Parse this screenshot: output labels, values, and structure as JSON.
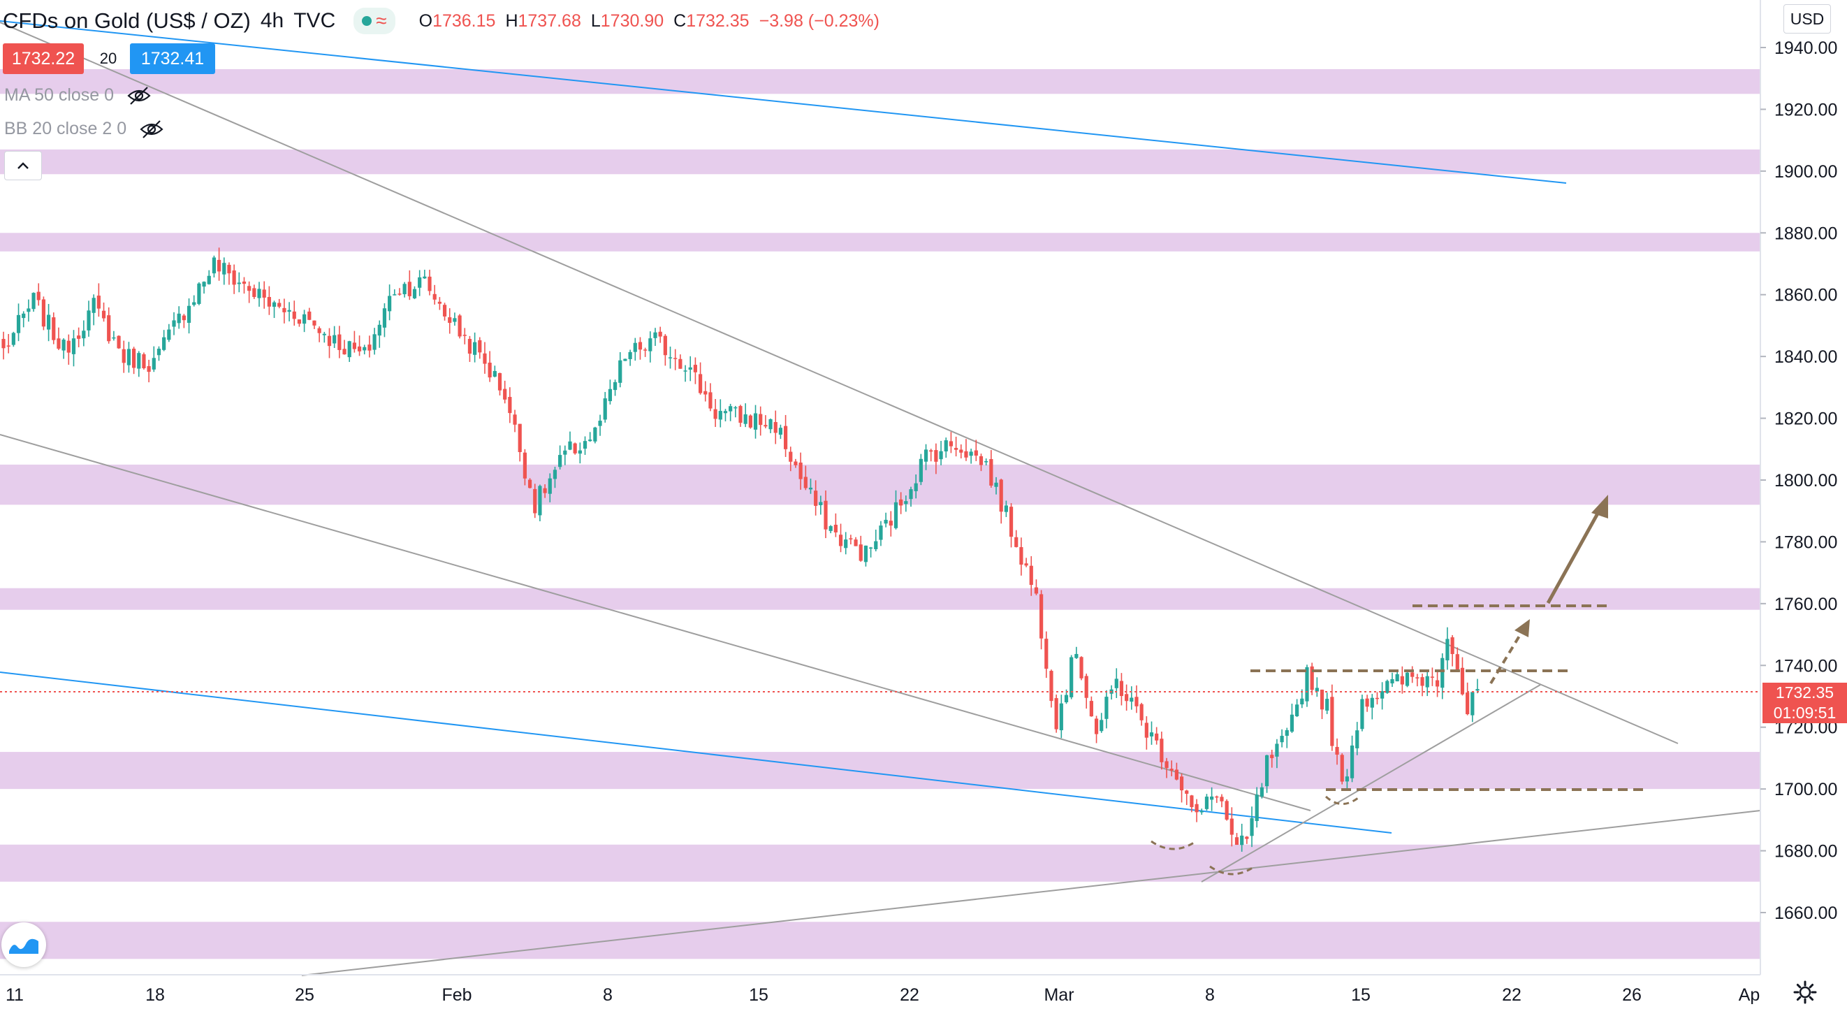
{
  "header": {
    "symbol": "CFDs on Gold (US$ / OZ)",
    "interval": "4h",
    "exchange": "TVC",
    "open_label": "O",
    "open": "1736.15",
    "high_label": "H",
    "high": "1737.68",
    "low_label": "L",
    "low": "1730.90",
    "close_label": "C",
    "close": "1732.35",
    "change": "−3.98 (−0.23%)"
  },
  "trade": {
    "bid": "1732.22",
    "spread": "20",
    "ask": "1732.41"
  },
  "indicators": [
    {
      "label": "MA 50 close 0",
      "icon": "eye-hidden-icon"
    },
    {
      "label": "BB 20 close 2 0",
      "icon": "eye-hidden-icon"
    }
  ],
  "currency_button": "USD",
  "last_price": {
    "price": "1732.35",
    "countdown": "01:09:51"
  },
  "colors": {
    "up": "#26a69a",
    "down": "#ef5350",
    "zone": "#e6cdec",
    "channel": "#2196f3",
    "trend": "#9e9e9e",
    "annotation": "#8b7355"
  },
  "chart_data": {
    "type": "candlestick",
    "ylim": [
      1640,
      1955
    ],
    "y_ticks": [
      "1940.00",
      "1920.00",
      "1900.00",
      "1880.00",
      "1860.00",
      "1840.00",
      "1820.00",
      "1800.00",
      "1780.00",
      "1760.00",
      "1740.00",
      "1720.00",
      "1700.00",
      "1680.00",
      "1660.00"
    ],
    "x_ticks": [
      "11",
      "18",
      "25",
      "Feb",
      "8",
      "15",
      "22",
      "Mar",
      "8",
      "15",
      "22",
      "26",
      "Ap"
    ],
    "grid": false,
    "support_resistance_zones": [
      [
        1925,
        1933
      ],
      [
        1899,
        1907
      ],
      [
        1874,
        1880
      ],
      [
        1792,
        1805
      ],
      [
        1758,
        1765
      ],
      [
        1700,
        1712
      ],
      [
        1670,
        1682
      ],
      [
        1645,
        1657
      ]
    ],
    "anchors": [
      {
        "t": 0,
        "p": 1842
      },
      {
        "t": 6,
        "p": 1858
      },
      {
        "t": 12,
        "p": 1842
      },
      {
        "t": 18,
        "p": 1856
      },
      {
        "t": 24,
        "p": 1840
      },
      {
        "t": 30,
        "p": 1838
      },
      {
        "t": 36,
        "p": 1855
      },
      {
        "t": 42,
        "p": 1870
      },
      {
        "t": 48,
        "p": 1863
      },
      {
        "t": 54,
        "p": 1856
      },
      {
        "t": 60,
        "p": 1853
      },
      {
        "t": 66,
        "p": 1845
      },
      {
        "t": 72,
        "p": 1840
      },
      {
        "t": 78,
        "p": 1862
      },
      {
        "t": 84,
        "p": 1864
      },
      {
        "t": 90,
        "p": 1850
      },
      {
        "t": 96,
        "p": 1838
      },
      {
        "t": 100,
        "p": 1828
      },
      {
        "t": 106,
        "p": 1792
      },
      {
        "t": 112,
        "p": 1808
      },
      {
        "t": 118,
        "p": 1815
      },
      {
        "t": 124,
        "p": 1840
      },
      {
        "t": 130,
        "p": 1845
      },
      {
        "t": 136,
        "p": 1838
      },
      {
        "t": 142,
        "p": 1822
      },
      {
        "t": 148,
        "p": 1820
      },
      {
        "t": 154,
        "p": 1818
      },
      {
        "t": 160,
        "p": 1797
      },
      {
        "t": 166,
        "p": 1782
      },
      {
        "t": 172,
        "p": 1776
      },
      {
        "t": 178,
        "p": 1790
      },
      {
        "t": 184,
        "p": 1808
      },
      {
        "t": 190,
        "p": 1812
      },
      {
        "t": 196,
        "p": 1805
      },
      {
        "t": 202,
        "p": 1780
      },
      {
        "t": 206,
        "p": 1762
      },
      {
        "t": 210,
        "p": 1722
      },
      {
        "t": 214,
        "p": 1745
      },
      {
        "t": 218,
        "p": 1718
      },
      {
        "t": 222,
        "p": 1735
      },
      {
        "t": 226,
        "p": 1725
      },
      {
        "t": 230,
        "p": 1714
      },
      {
        "t": 234,
        "p": 1705
      },
      {
        "t": 238,
        "p": 1690
      },
      {
        "t": 242,
        "p": 1700
      },
      {
        "t": 246,
        "p": 1680
      },
      {
        "t": 248,
        "p": 1683
      },
      {
        "t": 252,
        "p": 1708
      },
      {
        "t": 256,
        "p": 1716
      },
      {
        "t": 260,
        "p": 1738
      },
      {
        "t": 264,
        "p": 1726
      },
      {
        "t": 267,
        "p": 1700
      },
      {
        "t": 271,
        "p": 1729
      },
      {
        "t": 276,
        "p": 1733
      },
      {
        "t": 281,
        "p": 1736
      },
      {
        "t": 286,
        "p": 1736
      },
      {
        "t": 288,
        "p": 1752
      },
      {
        "t": 290,
        "p": 1740
      },
      {
        "t": 292,
        "p": 1724
      },
      {
        "t": 294,
        "p": 1732
      }
    ]
  }
}
